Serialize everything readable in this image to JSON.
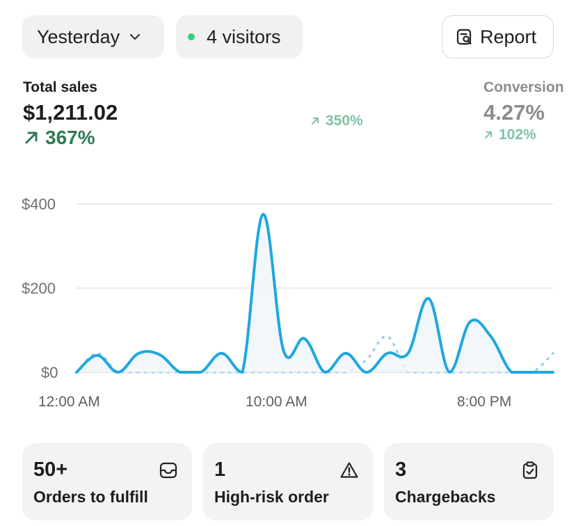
{
  "header": {
    "date_range": "Yesterday",
    "visitors": "4 visitors",
    "report_label": "Report"
  },
  "metrics": [
    {
      "label": "Total sales",
      "value": "$1,211.02",
      "delta": "367%"
    },
    {
      "label": "",
      "value": "",
      "delta": "350%"
    },
    {
      "label": "Conversion",
      "value": "4.27%",
      "delta": "102%"
    }
  ],
  "chart_data": {
    "type": "line",
    "y_ticks": [
      "$400",
      "$200",
      "$0"
    ],
    "x_ticks": [
      "12:00 AM",
      "10:00 AM",
      "8:00 PM"
    ],
    "ylim": [
      0,
      400
    ],
    "grid": true,
    "series": [
      {
        "style": "solid",
        "color": "#1ea7e1",
        "x": [
          0,
          1,
          2,
          3,
          4,
          5,
          6,
          7,
          8,
          9,
          10,
          11,
          12,
          13,
          14,
          15,
          16,
          17,
          18,
          19,
          20,
          21,
          22,
          23
        ],
        "values": [
          0,
          40,
          0,
          45,
          42,
          0,
          0,
          45,
          0,
          375,
          50,
          80,
          0,
          45,
          0,
          45,
          45,
          175,
          0,
          120,
          85,
          0,
          0,
          0
        ]
      },
      {
        "style": "dotted",
        "color": "#93c9e6",
        "x": [
          0,
          1,
          2,
          3,
          4,
          5,
          6,
          7,
          8,
          9,
          10,
          11,
          12,
          13,
          14,
          15,
          16,
          17,
          18,
          19,
          20,
          21,
          22,
          23
        ],
        "values": [
          0,
          45,
          0,
          0,
          0,
          0,
          0,
          0,
          0,
          0,
          0,
          0,
          0,
          0,
          30,
          85,
          0,
          0,
          0,
          0,
          0,
          0,
          0,
          45
        ]
      }
    ]
  },
  "cards": [
    {
      "number": "50+",
      "label": "Orders to fulfill"
    },
    {
      "number": "1",
      "label": "High-risk order"
    },
    {
      "number": "3",
      "label": "Chargebacks"
    }
  ]
}
